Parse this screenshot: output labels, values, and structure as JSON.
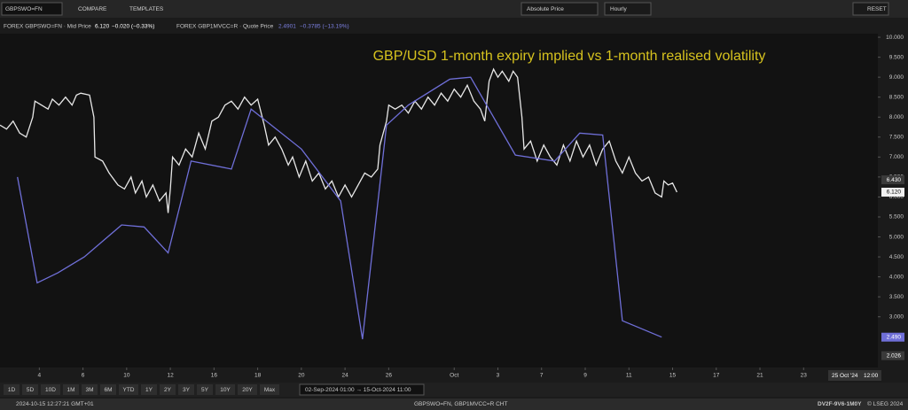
{
  "toolbar": {
    "symbol": "GBPSWO=FN",
    "compare": "COMPARE",
    "templates": "TEMPLATES",
    "price_type": "Absolute Price",
    "interval": "Hourly",
    "reset": "RESET"
  },
  "legend": [
    {
      "name": "FOREX GBPSWO=FN · Mid Price",
      "price": "6.120",
      "change": "−0.020 (−0.33%)"
    },
    {
      "name": "FOREX GBP1MVCC=R · Quote Price",
      "price": "2.4901",
      "change": "−0.3785 (−13.19%)"
    }
  ],
  "chart_data": {
    "type": "line",
    "title": "GBP/USD 1-month expiry implied vs 1-month realised volatility",
    "xlim": [
      0.2,
      40.4
    ],
    "ylim": [
      1.73,
      10.09
    ],
    "xticks": [
      {
        "value": 2,
        "label": "4"
      },
      {
        "value": 4,
        "label": "6"
      },
      {
        "value": 6,
        "label": "10"
      },
      {
        "value": 8,
        "label": "12"
      },
      {
        "value": 10,
        "label": "16"
      },
      {
        "value": 12,
        "label": "18"
      },
      {
        "value": 14,
        "label": "20"
      },
      {
        "value": 16,
        "label": "24"
      },
      {
        "value": 18,
        "label": "26"
      },
      {
        "value": 21,
        "label": "Oct"
      },
      {
        "value": 23,
        "label": "3"
      },
      {
        "value": 25,
        "label": "7"
      },
      {
        "value": 27,
        "label": "9"
      },
      {
        "value": 29,
        "label": "11"
      },
      {
        "value": 31,
        "label": "15"
      },
      {
        "value": 33,
        "label": "17"
      },
      {
        "value": 35,
        "label": "21"
      },
      {
        "value": 37,
        "label": "23"
      }
    ],
    "x_end_label": {
      "date": "25 Oct '24",
      "time": "12:00"
    },
    "yticks": [
      {
        "value": 3,
        "label": "3.000"
      },
      {
        "value": 3.5,
        "label": "3.500"
      },
      {
        "value": 4,
        "label": "4.000"
      },
      {
        "value": 4.5,
        "label": "4.500"
      },
      {
        "value": 5,
        "label": "5.000"
      },
      {
        "value": 5.5,
        "label": "5.500"
      },
      {
        "value": 6,
        "label": "6.000"
      },
      {
        "value": 6.5,
        "label": "6.500"
      },
      {
        "value": 7,
        "label": "7.000"
      },
      {
        "value": 7.5,
        "label": "7.500"
      },
      {
        "value": 8,
        "label": "8.000"
      },
      {
        "value": 8.5,
        "label": "8.500"
      },
      {
        "value": 9,
        "label": "9.000"
      },
      {
        "value": 9.5,
        "label": "9.500"
      },
      {
        "value": 10,
        "label": "10.000"
      }
    ],
    "series": [
      {
        "name": "GBPSWO=FN",
        "color": "#e8e8e8",
        "x": [
          0.2,
          0.5,
          0.8,
          1.1,
          1.4,
          1.7,
          1.8,
          2.1,
          2.4,
          2.6,
          2.9,
          3.2,
          3.5,
          3.7,
          3.9,
          4.3,
          4.5,
          4.55,
          4.9,
          5.2,
          5.6,
          5.9,
          6.2,
          6.4,
          6.7,
          6.9,
          7.2,
          7.5,
          7.8,
          7.9,
          8.0,
          8.1,
          8.4,
          8.7,
          9.0,
          9.3,
          9.6,
          9.9,
          10.2,
          10.5,
          10.8,
          11.1,
          11.4,
          11.7,
          12.0,
          12.3,
          12.5,
          12.8,
          13.1,
          13.4,
          13.6,
          13.9,
          14.2,
          14.5,
          14.8,
          15.1,
          15.4,
          15.7,
          16.0,
          16.3,
          16.6,
          16.9,
          17.2,
          17.5,
          17.6,
          17.9,
          18.0,
          18.3,
          18.6,
          18.9,
          19.2,
          19.5,
          19.8,
          20.1,
          20.4,
          20.7,
          21.0,
          21.3,
          21.6,
          21.9,
          22.2,
          22.4,
          22.6,
          22.8,
          23.0,
          23.2,
          23.5,
          23.7,
          23.9,
          24.1,
          24.2,
          24.5,
          24.8,
          25.1,
          25.4,
          25.7,
          26.0,
          26.3,
          26.6,
          26.9,
          27.2,
          27.5,
          27.8,
          28.1,
          28.4,
          28.7,
          29.0,
          29.3,
          29.6,
          29.9,
          30.2,
          30.5,
          30.6,
          30.8,
          31.0,
          31.2
        ],
        "values": [
          7.8,
          7.7,
          7.9,
          7.6,
          7.5,
          8.0,
          8.4,
          8.3,
          8.2,
          8.45,
          8.3,
          8.5,
          8.3,
          8.55,
          8.6,
          8.55,
          8.0,
          7.0,
          6.9,
          6.6,
          6.3,
          6.2,
          6.5,
          6.1,
          6.4,
          6.0,
          6.3,
          5.9,
          6.1,
          5.6,
          6.2,
          7.0,
          6.8,
          7.2,
          7.0,
          7.6,
          7.2,
          7.9,
          8.0,
          8.3,
          8.4,
          8.2,
          8.5,
          8.3,
          8.45,
          7.8,
          7.3,
          7.5,
          7.2,
          6.8,
          7.0,
          6.5,
          6.9,
          6.4,
          6.6,
          6.2,
          6.4,
          6.0,
          6.3,
          6.0,
          6.3,
          6.6,
          6.5,
          6.7,
          7.3,
          7.9,
          8.3,
          8.2,
          8.3,
          8.1,
          8.4,
          8.2,
          8.5,
          8.3,
          8.6,
          8.4,
          8.7,
          8.5,
          8.8,
          8.4,
          8.2,
          7.9,
          8.9,
          9.2,
          9.0,
          9.15,
          8.9,
          9.15,
          9.0,
          8.0,
          7.2,
          7.4,
          6.9,
          7.3,
          7.0,
          6.8,
          7.3,
          6.9,
          7.4,
          7.0,
          7.3,
          6.8,
          7.2,
          7.4,
          6.9,
          6.6,
          7.0,
          6.6,
          6.4,
          6.5,
          6.1,
          6.0,
          6.4,
          6.3,
          6.35,
          6.12
        ]
      },
      {
        "name": "GBP1MVCC=R",
        "color": "#6f6fd8",
        "x": [
          1.0,
          1.9,
          2.85,
          4.06,
          5.77,
          6.8,
          7.9,
          8.95,
          10.8,
          11.7,
          14.0,
          15.8,
          16.8,
          17.9,
          18.9,
          20.8,
          21.75,
          23.8,
          25.6,
          26.75,
          27.8,
          28.7,
          30.5
        ],
        "values": [
          6.5,
          3.85,
          4.1,
          4.5,
          5.3,
          5.25,
          4.6,
          6.9,
          6.7,
          8.2,
          7.2,
          5.9,
          2.44,
          7.8,
          8.3,
          8.95,
          9.0,
          7.05,
          6.9,
          7.6,
          7.55,
          2.9,
          2.49
        ]
      }
    ]
  },
  "price_tags": [
    {
      "value": 6.43,
      "label": "6.430"
    },
    {
      "value": 6.12,
      "label": "6.120"
    },
    {
      "value": 2.49,
      "label": "2.490"
    },
    {
      "value": 2.026,
      "label": "2.026"
    }
  ],
  "range_buttons": [
    "1D",
    "5D",
    "10D",
    "1M",
    "3M",
    "6M",
    "YTD",
    "1Y",
    "2Y",
    "3Y",
    "5Y",
    "10Y",
    "20Y",
    "Max"
  ],
  "date_range": "02-Sep-2024 01:00  →  15-Oct-2024 11:00",
  "status": {
    "time": "2024-10-15 12:27:21 GMT+01",
    "instruments": "GBPSWO=FN, GBP1MVCC=R CHT",
    "code": "DV2F-9V6-1M0Y",
    "copyright": "© LSEG 2024"
  }
}
